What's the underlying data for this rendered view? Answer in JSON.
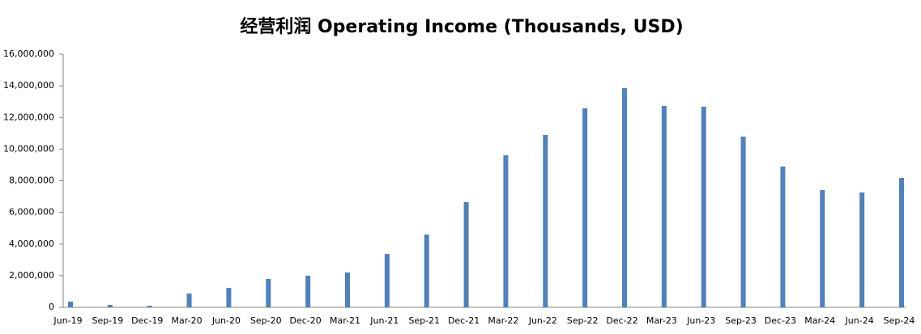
{
  "chart_data": {
    "type": "bar",
    "title": "经营利润 Operating Income (Thousands, USD)",
    "categories": [
      "Jun-19",
      "Sep-19",
      "Dec-19",
      "Mar-20",
      "Jun-20",
      "Sep-20",
      "Dec-20",
      "Mar-21",
      "Jun-21",
      "Sep-21",
      "Dec-21",
      "Mar-22",
      "Jun-22",
      "Sep-22",
      "Dec-22",
      "Mar-23",
      "Jun-23",
      "Sep-23",
      "Dec-23",
      "Mar-24",
      "Jun-24",
      "Sep-24"
    ],
    "values": [
      360000,
      150000,
      100000,
      870000,
      1230000,
      1790000,
      2000000,
      2200000,
      3370000,
      4600000,
      6650000,
      9610000,
      10890000,
      12580000,
      13850000,
      12730000,
      12680000,
      10790000,
      8900000,
      7410000,
      7260000,
      8180000
    ],
    "color": "#4f81bd",
    "ylim": [
      0,
      16000000
    ],
    "yticks": [
      {
        "value": 0,
        "label": "0"
      },
      {
        "value": 2000000,
        "label": "2,000,000"
      },
      {
        "value": 4000000,
        "label": "4,000,000"
      },
      {
        "value": 6000000,
        "label": "6,000,000"
      },
      {
        "value": 8000000,
        "label": "8,000,000"
      },
      {
        "value": 10000000,
        "label": "10,000,000"
      },
      {
        "value": 12000000,
        "label": "12,000,000"
      },
      {
        "value": 14000000,
        "label": "14,000,000"
      },
      {
        "value": 16000000,
        "label": "16,000,000"
      }
    ],
    "grid": false
  }
}
